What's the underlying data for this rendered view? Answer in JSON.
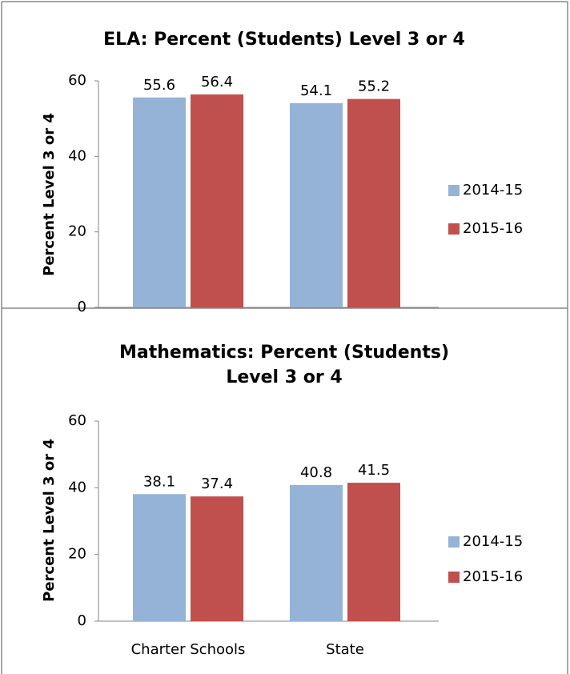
{
  "chart_data": [
    {
      "type": "bar",
      "title": "ELA: Percent (Students) Level 3 or 4",
      "y_label": "Percent Level 3 or 4",
      "categories": [
        null,
        null
      ],
      "series": [
        {
          "name": "2014-15",
          "color": "#95b3d7",
          "values": [
            55.6,
            54.1
          ]
        },
        {
          "name": "2015-16",
          "color": "#c0504d",
          "values": [
            56.4,
            55.2
          ]
        }
      ],
      "ylim": [
        0,
        60
      ],
      "yticks": [
        0,
        20,
        40,
        60
      ],
      "grid": false,
      "legend": "right"
    },
    {
      "type": "bar",
      "title": "Mathematics: Percent (Students) Level 3 or 4",
      "y_label": "Percent Level 3 or 4",
      "categories": [
        "Charter Schools",
        "State"
      ],
      "series": [
        {
          "name": "2014-15",
          "color": "#95b3d7",
          "values": [
            38.1,
            40.8
          ]
        },
        {
          "name": "2015-16",
          "color": "#c0504d",
          "values": [
            37.4,
            41.5
          ]
        }
      ],
      "ylim": [
        0,
        60
      ],
      "yticks": [
        0,
        20,
        40,
        60
      ],
      "grid": false,
      "legend": "right"
    }
  ]
}
